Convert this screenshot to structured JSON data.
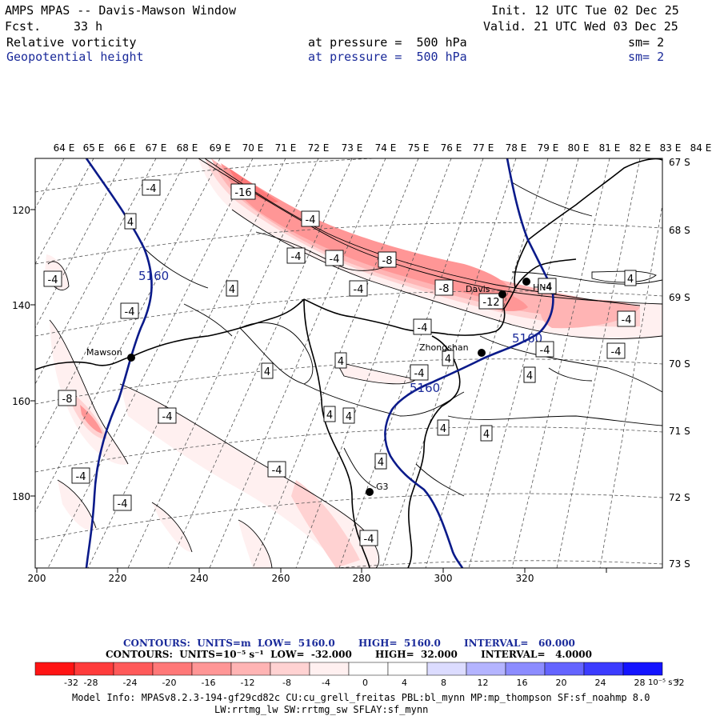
{
  "header": {
    "title": "AMPS MPAS -- Davis-Mawson Window",
    "fcst_label": "Fcst.",
    "fcst_value": "33 h",
    "init": "Init. 12 UTC Tue 02 Dec 25",
    "valid": "Valid. 21 UTC Wed 03 Dec 25",
    "field1": {
      "name": "Relative vorticity",
      "pressure": "at pressure =  500 hPa",
      "sm": "sm= 2"
    },
    "field2": {
      "name": "Geopotential height",
      "pressure": "at pressure =  500 hPa",
      "sm": "sm= 2"
    }
  },
  "map": {
    "lon_labels": [
      "64 E",
      "65 E",
      "66 E",
      "67 E",
      "68 E",
      "69 E",
      "70 E",
      "71 E",
      "72 E",
      "73 E",
      "74 E",
      "75 E",
      "76 E",
      "77 E",
      "78 E",
      "79 E",
      "80 E",
      "81 E",
      "82 E",
      "83 E",
      "84 E"
    ],
    "lat_labels": [
      "67 S",
      "68 S",
      "69 S",
      "70 S",
      "71 S",
      "72 S",
      "73 S"
    ],
    "x_ticks": [
      "200",
      "220",
      "240",
      "260",
      "280",
      "300",
      "320"
    ],
    "y_ticks": [
      "120",
      "140",
      "160",
      "180"
    ],
    "stations": [
      {
        "name": "Mawson"
      },
      {
        "name": "Davis"
      },
      {
        "name": "Zhongshan"
      },
      {
        "name": "G3"
      },
      {
        "name": "HN4"
      }
    ],
    "height_labels": [
      "5160",
      "5160",
      "5160"
    ],
    "vort_labels": [
      "-16",
      "-4",
      "-4",
      "-8",
      "-4",
      "-4",
      "-4",
      "4",
      "-4",
      "-8",
      "-12",
      "4",
      "-4",
      "4",
      "-4",
      "-4",
      "-4",
      "-8",
      "-4",
      "4",
      "4",
      "-4",
      "4",
      "4",
      "4",
      "-4",
      "-4",
      "4",
      "4",
      "-4",
      "4",
      "-4",
      "-4",
      "4",
      "-4",
      "4",
      "-4",
      "4",
      "4"
    ]
  },
  "legend": {
    "contours1": "CONTOURS:  UNITS=m  LOW=  5160.0       HIGH=  5160.0       INTERVAL=   60.000",
    "contours2": "CONTOURS:  UNITS=10⁻⁵ s⁻¹  LOW=  -32.000       HIGH=  32.000       INTERVAL=   4.0000",
    "ticks": [
      "-32",
      "-28",
      "-24",
      "-20",
      "-16",
      "-12",
      "-8",
      "-4",
      "0",
      "4",
      "8",
      "12",
      "16",
      "20",
      "24",
      "28",
      "32"
    ],
    "unit": "10⁻⁵ s⁻¹",
    "colors": [
      "#ff1414",
      "#ff3c3c",
      "#ff5a5a",
      "#ff7878",
      "#ff9696",
      "#ffb4b4",
      "#ffd2d2",
      "#fff0f0",
      "#ffffff",
      "#ffffff",
      "#dcdcff",
      "#b4b4ff",
      "#8c8cff",
      "#6464ff",
      "#3c3cff",
      "#1414ff"
    ]
  },
  "info": {
    "line1": "Model Info: MPASv8.2.3-194-gf29cd82c CU:cu_grell_freitas PBL:bl_mynn MP:mp_thompson SF:sf_noahmp 8.0",
    "line2": "LW:rrtmg_lw SW:rrtmg_sw SFLAY:sf_mynn"
  }
}
